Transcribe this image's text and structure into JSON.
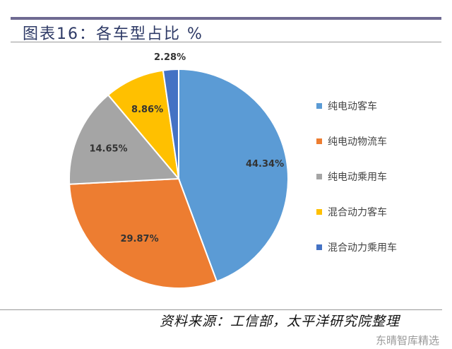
{
  "title": "图表16：各车型占比 %",
  "source": "资料来源：工信部，太平洋研究院整理",
  "watermark": "东晴智库精选",
  "chart_data": {
    "type": "pie",
    "title": "图表16：各车型占比 %",
    "start": "12 o'clock, clockwise",
    "legend_position": "right",
    "categories": [
      "纯电动客车",
      "纯电动物流车",
      "纯电动乘用车",
      "混合动力客车",
      "混合动力乘用车"
    ],
    "values": [
      44.34,
      29.87,
      14.65,
      8.86,
      2.28
    ],
    "labels": [
      "44.34%",
      "29.87%",
      "14.65%",
      "8.86%",
      "2.28%"
    ],
    "colors": [
      "#5b9bd5",
      "#ed7d31",
      "#a5a5a5",
      "#ffc000",
      "#4472c4"
    ]
  }
}
